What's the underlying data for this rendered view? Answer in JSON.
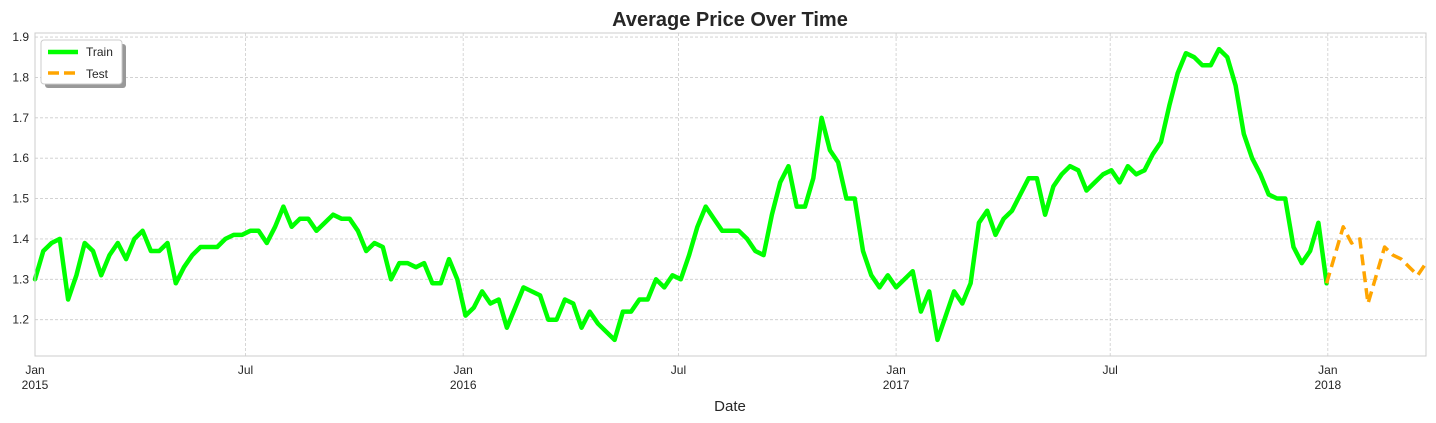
{
  "chart_data": {
    "type": "line",
    "title": "Average Price Over Time",
    "xlabel": "Date",
    "ylabel": "",
    "xlim": [
      "2015-01-04",
      "2018-03-25"
    ],
    "ylim": [
      1.11,
      1.91
    ],
    "grid": true,
    "legend_position": "top-left",
    "y_ticks": [
      1.2,
      1.3,
      1.4,
      1.5,
      1.6,
      1.7,
      1.8,
      1.9
    ],
    "y_tick_labels": [
      "1.2",
      "1.3",
      "1.4",
      "1.5",
      "1.6",
      "1.7",
      "1.8",
      "1.9"
    ],
    "x_ticks": [
      {
        "date": "2015-01-04",
        "label": "Jan",
        "sublabel": "2015"
      },
      {
        "date": "2015-07-01",
        "label": "Jul",
        "sublabel": ""
      },
      {
        "date": "2016-01-01",
        "label": "Jan",
        "sublabel": "2016"
      },
      {
        "date": "2016-07-01",
        "label": "Jul",
        "sublabel": ""
      },
      {
        "date": "2017-01-01",
        "label": "Jan",
        "sublabel": "2017"
      },
      {
        "date": "2017-07-01",
        "label": "Jul",
        "sublabel": ""
      },
      {
        "date": "2018-01-01",
        "label": "Jan",
        "sublabel": "2018"
      }
    ],
    "series": [
      {
        "name": "Train",
        "color": "#00ff00",
        "style": "solid",
        "start_date": "2015-01-04",
        "step_days": 7,
        "values": [
          1.3,
          1.37,
          1.39,
          1.4,
          1.25,
          1.31,
          1.39,
          1.37,
          1.31,
          1.36,
          1.39,
          1.35,
          1.4,
          1.42,
          1.37,
          1.37,
          1.39,
          1.29,
          1.33,
          1.36,
          1.38,
          1.38,
          1.38,
          1.4,
          1.41,
          1.41,
          1.42,
          1.42,
          1.39,
          1.43,
          1.48,
          1.43,
          1.45,
          1.45,
          1.42,
          1.44,
          1.46,
          1.45,
          1.45,
          1.42,
          1.37,
          1.39,
          1.38,
          1.3,
          1.34,
          1.34,
          1.33,
          1.34,
          1.29,
          1.29,
          1.35,
          1.3,
          1.21,
          1.23,
          1.27,
          1.24,
          1.25,
          1.18,
          1.23,
          1.28,
          1.27,
          1.26,
          1.2,
          1.2,
          1.25,
          1.24,
          1.18,
          1.22,
          1.19,
          1.17,
          1.15,
          1.22,
          1.22,
          1.25,
          1.25,
          1.3,
          1.28,
          1.31,
          1.3,
          1.36,
          1.43,
          1.48,
          1.45,
          1.42,
          1.42,
          1.42,
          1.4,
          1.37,
          1.36,
          1.46,
          1.54,
          1.58,
          1.48,
          1.48,
          1.55,
          1.7,
          1.62,
          1.59,
          1.5,
          1.5,
          1.37,
          1.31,
          1.28,
          1.31,
          1.28,
          1.3,
          1.32,
          1.22,
          1.27,
          1.15,
          1.21,
          1.27,
          1.24,
          1.29,
          1.44,
          1.47,
          1.41,
          1.45,
          1.47,
          1.51,
          1.55,
          1.55,
          1.46,
          1.53,
          1.56,
          1.58,
          1.57,
          1.52,
          1.54,
          1.56,
          1.57,
          1.54,
          1.58,
          1.56,
          1.57,
          1.61,
          1.64,
          1.73,
          1.81,
          1.86,
          1.85,
          1.83,
          1.83,
          1.87,
          1.85,
          1.78,
          1.66,
          1.6,
          1.56,
          1.51,
          1.5,
          1.5,
          1.38,
          1.34,
          1.37,
          1.44,
          1.29
        ]
      },
      {
        "name": "Test",
        "color": "#ffa500",
        "style": "dashed",
        "start_date": "2017-12-31",
        "step_days": 7,
        "values": [
          1.29,
          1.36,
          1.43,
          1.39,
          1.4,
          1.24,
          1.31,
          1.38,
          1.36,
          1.35,
          1.33,
          1.31,
          1.34
        ]
      }
    ]
  }
}
